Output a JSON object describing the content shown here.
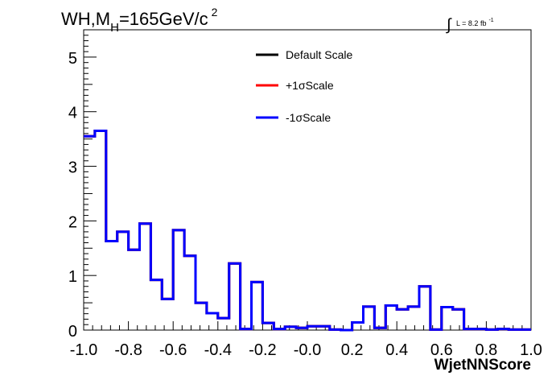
{
  "title": {
    "prefix": "WH,M",
    "sub": "H",
    "main": "=165GeV/c",
    "sup": "2"
  },
  "lumi": {
    "integral": "∫",
    "text": "L = 8.2 fb",
    "sup": "-1"
  },
  "chart_data": {
    "type": "histogram-step",
    "xlabel": "WjetNNScore",
    "ylabel": "",
    "xlim": [
      -1.0,
      1.0
    ],
    "ylim": [
      0,
      5.5
    ],
    "x_ticks": [
      "-1.0",
      "-0.8",
      "-0.6",
      "-0.4",
      "-0.2",
      "-0.0",
      "0.2",
      "0.4",
      "0.6",
      "0.8",
      "1.0"
    ],
    "y_ticks": [
      "0",
      "1",
      "2",
      "3",
      "4",
      "5"
    ],
    "bin_edges": [
      -1.0,
      -0.95,
      -0.9,
      -0.85,
      -0.8,
      -0.75,
      -0.7,
      -0.65,
      -0.6,
      -0.55,
      -0.5,
      -0.45,
      -0.4,
      -0.35,
      -0.3,
      -0.25,
      -0.2,
      -0.15,
      -0.1,
      -0.05,
      0.0,
      0.05,
      0.1,
      0.15,
      0.2,
      0.25,
      0.3,
      0.35,
      0.4,
      0.45,
      0.5,
      0.55,
      0.6,
      0.65,
      0.7,
      0.75,
      0.8,
      0.85,
      0.9,
      0.95,
      1.0
    ],
    "series": [
      {
        "name": "Default Scale",
        "color": "#000000",
        "values": [
          3.55,
          3.65,
          1.63,
          1.8,
          1.47,
          1.95,
          0.92,
          0.57,
          1.83,
          1.36,
          0.5,
          0.31,
          0.22,
          1.22,
          0.02,
          0.88,
          0.13,
          0.02,
          0.06,
          0.04,
          0.07,
          0.07,
          0.01,
          0.0,
          0.14,
          0.43,
          0.04,
          0.45,
          0.38,
          0.43,
          0.8,
          0.01,
          0.42,
          0.38,
          0.02,
          0.02,
          0.01,
          0.02,
          0.01,
          0.01
        ]
      },
      {
        "name": "+1σScale",
        "color": "#ff0000",
        "values": [
          3.55,
          3.65,
          1.63,
          1.8,
          1.47,
          1.95,
          0.92,
          0.57,
          1.83,
          1.36,
          0.5,
          0.31,
          0.22,
          1.22,
          0.02,
          0.88,
          0.13,
          0.02,
          0.06,
          0.04,
          0.07,
          0.07,
          0.01,
          0.0,
          0.14,
          0.43,
          0.04,
          0.45,
          0.38,
          0.43,
          0.8,
          0.01,
          0.42,
          0.38,
          0.02,
          0.02,
          0.01,
          0.02,
          0.01,
          0.01
        ]
      },
      {
        "name": "-1σScale",
        "color": "#0000ff",
        "values": [
          3.55,
          3.65,
          1.63,
          1.8,
          1.47,
          1.95,
          0.92,
          0.57,
          1.83,
          1.36,
          0.5,
          0.31,
          0.22,
          1.22,
          0.02,
          0.88,
          0.13,
          0.02,
          0.06,
          0.04,
          0.07,
          0.07,
          0.01,
          0.0,
          0.14,
          0.43,
          0.04,
          0.45,
          0.38,
          0.43,
          0.8,
          0.01,
          0.42,
          0.38,
          0.02,
          0.02,
          0.01,
          0.02,
          0.01,
          0.01
        ]
      }
    ],
    "legend_position": "top-center"
  }
}
